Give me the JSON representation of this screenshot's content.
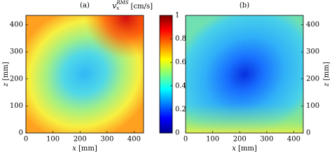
{
  "chart_data": [
    {
      "type": "heatmap",
      "title": "(a)",
      "xlabel": [
        "x",
        "[mm]"
      ],
      "ylabel": [
        "z",
        "[mm]"
      ],
      "ylabel_side": "left",
      "xlim": [
        0,
        435
      ],
      "ylim": [
        0,
        435
      ],
      "xticks": [
        0,
        100,
        200,
        300,
        400
      ],
      "yticks": [
        0,
        100,
        200,
        300,
        400
      ]
    },
    {
      "type": "heatmap",
      "title": "(b)",
      "xlabel": [
        "x",
        "[mm]"
      ],
      "ylabel": [
        "z",
        "[mm]"
      ],
      "ylabel_side": "right",
      "xlim": [
        0,
        435
      ],
      "ylim": [
        0,
        435
      ],
      "xticks": [
        0,
        100,
        200,
        300,
        400
      ],
      "yticks": [
        0,
        100,
        200,
        300,
        400
      ]
    }
  ],
  "colorbar": {
    "symbol": "v",
    "subscript": "x",
    "superscript": "RMS",
    "unit": "[cm/s]",
    "ylim": [
      0,
      1
    ],
    "yticks": [
      0,
      0.2,
      0.4,
      0.6,
      0.8,
      1
    ],
    "colors": [
      "#00008f",
      "#0000ff",
      "#0080ff",
      "#00ffff",
      "#80ff80",
      "#ffff00",
      "#ff8000",
      "#ff0000",
      "#800000"
    ]
  }
}
